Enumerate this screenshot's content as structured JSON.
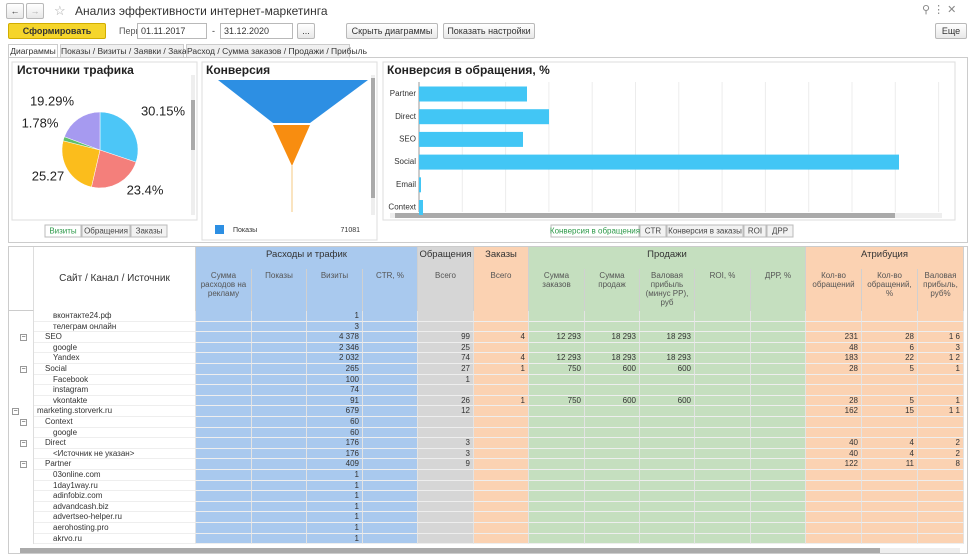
{
  "header": {
    "title": "Анализ эффективности интернет-маркетинга",
    "run_button": "Сформировать",
    "period_label": "Период:",
    "date_from": "01.11.2017",
    "date_to": "31.12.2020",
    "dots": "...",
    "hide_charts": "Скрыть диаграммы",
    "show_settings": "Показать настройки",
    "more": "Еще"
  },
  "tabs": [
    "Диаграммы",
    "Показы / Визиты / Заявки / Заказы",
    "Расход / Сумма заказов / Продажи / Прибыль"
  ],
  "chart_data": [
    {
      "type": "pie",
      "title": "Источники трафика",
      "values": [
        30.15,
        23.4,
        25.27,
        1.78,
        19.29
      ],
      "value_labels": [
        "30.15%",
        "23.4%",
        "25.27",
        "1.78%",
        "19.29%"
      ],
      "colors": [
        "#4cc6f7",
        "#f47f7b",
        "#fbbd1c",
        "#5fbf6a",
        "#a69af0"
      ],
      "tabs": [
        "Визиты",
        "Обращения",
        "Заказы"
      ]
    },
    {
      "type": "funnel",
      "title": "Конверсия",
      "legend": "Показы",
      "value": 71081,
      "color": "#2d8fe3"
    },
    {
      "type": "bar",
      "title": "Конверсия в обращения, %",
      "categories": [
        "Partner",
        "Direct",
        "SEO",
        "Social",
        "Email",
        "Context"
      ],
      "values": [
        2.7,
        3.25,
        2.6,
        12,
        0.05,
        0.1
      ],
      "color": "#42c6f5",
      "xlim": [
        0,
        13
      ],
      "tabs": [
        "Конверсия в обращения",
        "CTR",
        "Конверсия в заказы",
        "ROI",
        "ДРР"
      ]
    }
  ],
  "table": {
    "groups": [
      "Расходы и трафик",
      "Обращения",
      "Заказы",
      "Продажи",
      "Атрибуция"
    ],
    "columns": [
      "Сайт / Канал / Источник",
      "Сумма расходов на рекламу",
      "Показы",
      "Визиты",
      "CTR, %",
      "Всего",
      "Всего",
      "Сумма заказов",
      "Сумма продаж",
      "Валовая прибыль (минус РР), руб",
      "ROI, %",
      "ДРР, %",
      "Кол-во обращений",
      "Кол-во обращений, %",
      "Валовая прибыль, руб%"
    ],
    "rows": [
      [
        "вконтакте24.рф",
        null,
        null,
        "1",
        null,
        null,
        null,
        null,
        null,
        null,
        null,
        null,
        null,
        null,
        null
      ],
      [
        "телеграм онлайн",
        null,
        null,
        "3",
        null,
        null,
        null,
        null,
        null,
        null,
        null,
        null,
        null,
        null,
        null
      ],
      [
        "SEO",
        null,
        null,
        "4 378",
        null,
        "99",
        "4",
        "12 293",
        "18 293",
        "18 293",
        null,
        null,
        "231",
        "28",
        "1 6"
      ],
      [
        "google",
        null,
        null,
        "2 346",
        null,
        "25",
        null,
        null,
        null,
        null,
        null,
        null,
        "48",
        "6",
        "3"
      ],
      [
        "Yandex",
        null,
        null,
        "2 032",
        null,
        "74",
        "4",
        "12 293",
        "18 293",
        "18 293",
        null,
        null,
        "183",
        "22",
        "1 2"
      ],
      [
        "Social",
        null,
        null,
        "265",
        null,
        "27",
        "1",
        "750",
        "600",
        "600",
        null,
        null,
        "28",
        "5",
        "1"
      ],
      [
        "Facebook",
        null,
        null,
        "100",
        null,
        "1",
        null,
        null,
        null,
        null,
        null,
        null,
        null,
        null,
        null
      ],
      [
        "instagram",
        null,
        null,
        "74",
        null,
        null,
        null,
        null,
        null,
        null,
        null,
        null,
        null,
        null,
        null
      ],
      [
        "vkontakte",
        null,
        null,
        "91",
        null,
        "26",
        "1",
        "750",
        "600",
        "600",
        null,
        null,
        "28",
        "5",
        "1"
      ],
      [
        "marketing.storverk.ru",
        null,
        null,
        "679",
        null,
        "12",
        null,
        null,
        null,
        null,
        null,
        null,
        "162",
        "15",
        "1 1"
      ],
      [
        "Context",
        null,
        null,
        "60",
        null,
        null,
        null,
        null,
        null,
        null,
        null,
        null,
        null,
        null,
        null
      ],
      [
        "google",
        null,
        null,
        "60",
        null,
        null,
        null,
        null,
        null,
        null,
        null,
        null,
        null,
        null,
        null
      ],
      [
        "Direct",
        null,
        null,
        "176",
        null,
        "3",
        null,
        null,
        null,
        null,
        null,
        null,
        "40",
        "4",
        "2"
      ],
      [
        "<Источник не указан>",
        null,
        null,
        "176",
        null,
        "3",
        null,
        null,
        null,
        null,
        null,
        null,
        "40",
        "4",
        "2"
      ],
      [
        "Partner",
        null,
        null,
        "409",
        null,
        "9",
        null,
        null,
        null,
        null,
        null,
        null,
        "122",
        "11",
        "8"
      ],
      [
        "03online.com",
        null,
        null,
        "1",
        null,
        null,
        null,
        null,
        null,
        null,
        null,
        null,
        null,
        null,
        null
      ],
      [
        "1day1way.ru",
        null,
        null,
        "1",
        null,
        null,
        null,
        null,
        null,
        null,
        null,
        null,
        null,
        null,
        null
      ],
      [
        "adinfobiz.com",
        null,
        null,
        "1",
        null,
        null,
        null,
        null,
        null,
        null,
        null,
        null,
        null,
        null,
        null
      ],
      [
        "advandcash.biz",
        null,
        null,
        "1",
        null,
        null,
        null,
        null,
        null,
        null,
        null,
        null,
        null,
        null,
        null
      ],
      [
        "advertseo-helper.ru",
        null,
        null,
        "1",
        null,
        null,
        null,
        null,
        null,
        null,
        null,
        null,
        null,
        null,
        null
      ],
      [
        "aerohosting.pro",
        null,
        null,
        "1",
        null,
        null,
        null,
        null,
        null,
        null,
        null,
        null,
        null,
        null,
        null
      ],
      [
        "akrvo.ru",
        null,
        null,
        "1",
        null,
        null,
        null,
        null,
        null,
        null,
        null,
        null,
        null,
        null,
        null
      ]
    ]
  }
}
